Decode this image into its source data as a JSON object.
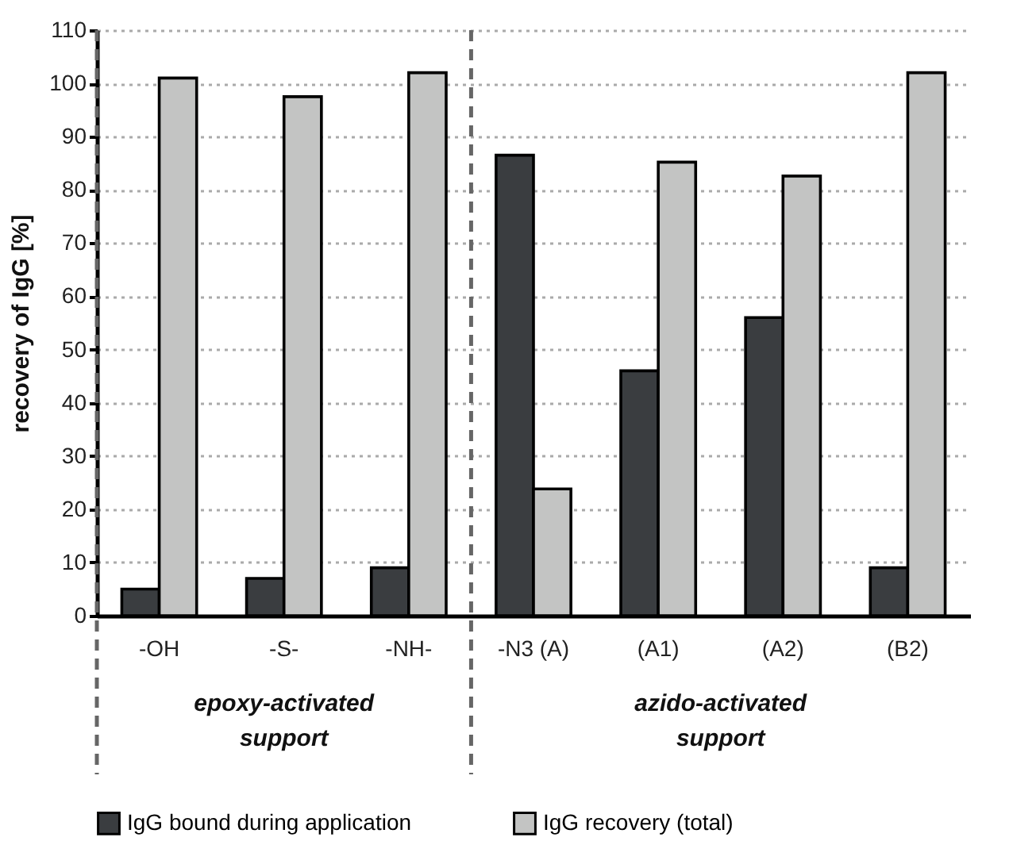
{
  "chart_data": {
    "type": "bar",
    "ylabel": "recovery of IgG [%]",
    "categories": [
      "-OH",
      "-S-",
      "-NH-",
      "-N3 (A)",
      "(A1)",
      "(A2)",
      "(B2)"
    ],
    "series": [
      {
        "name": "IgG bound during application",
        "color": "#3a3d40",
        "values": [
          5,
          7,
          9,
          86.5,
          46,
          56,
          9
        ]
      },
      {
        "name": "IgG recovery (total)",
        "color": "#c3c4c3",
        "values": [
          101,
          97.5,
          102,
          23.8,
          85.2,
          82.6,
          102
        ]
      }
    ],
    "ylim": [
      0,
      110
    ],
    "yticks": [
      0,
      10,
      20,
      30,
      40,
      50,
      60,
      70,
      80,
      90,
      100,
      110
    ],
    "grid": "y",
    "legend": "bottom",
    "ref_lines": [
      {
        "axis": "x",
        "value": "-OH",
        "line_style": "dashed",
        "color": "#666666"
      },
      {
        "axis": "x",
        "value": "-N3 (A)",
        "line_style": "dashed",
        "color": "#666666"
      }
    ],
    "annotations": [
      "epoxy-activated support",
      "azido-activated support"
    ]
  }
}
